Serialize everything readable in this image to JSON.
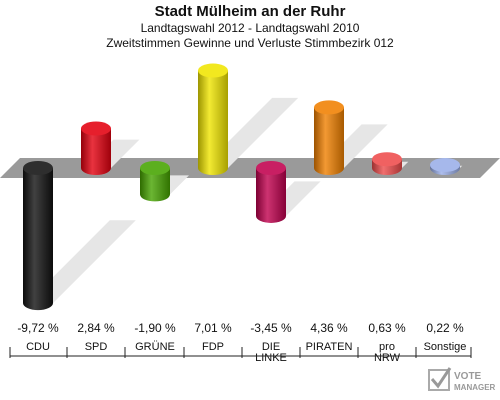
{
  "header": {
    "title": "Stadt Mülheim an der Ruhr",
    "subtitle": "Landtagswahl 2012 - Landtagswahl 2010",
    "description": "Zweitstimmen Gewinne und Verluste Stimmbezirk 012"
  },
  "logo": {
    "line1": "VOTE",
    "line2": "MANAGER"
  },
  "chart_data": {
    "type": "bar",
    "title": "Stadt Mülheim an der Ruhr",
    "subtitle": "Zweitstimmen Gewinne und Verluste Stimmbezirk 012",
    "categories": [
      "CDU",
      "SPD",
      "GRÜNE",
      "FDP",
      "DIE LINKE",
      "PIRATEN",
      "pro NRW",
      "Sonstige"
    ],
    "category_lines": [
      [
        "CDU"
      ],
      [
        "SPD"
      ],
      [
        "GRÜNE"
      ],
      [
        "FDP"
      ],
      [
        "DIE",
        "LINKE"
      ],
      [
        "PIRATEN"
      ],
      [
        "pro",
        "NRW"
      ],
      [
        "Sonstige"
      ]
    ],
    "values": [
      -9.72,
      2.84,
      -1.9,
      7.01,
      -3.45,
      4.36,
      0.63,
      0.22
    ],
    "value_labels": [
      "-9,72 %",
      "2,84 %",
      "-1,90 %",
      "7,01 %",
      "-3,45 %",
      "4,36 %",
      "0,63 %",
      "0,22 %"
    ],
    "colors": [
      "#111111",
      "#e3000f",
      "#46a400",
      "#f0e500",
      "#c0004e",
      "#f08000",
      "#ee4b4b",
      "#9aaee8"
    ],
    "xlabel": "",
    "ylabel": "",
    "legend": "none"
  }
}
